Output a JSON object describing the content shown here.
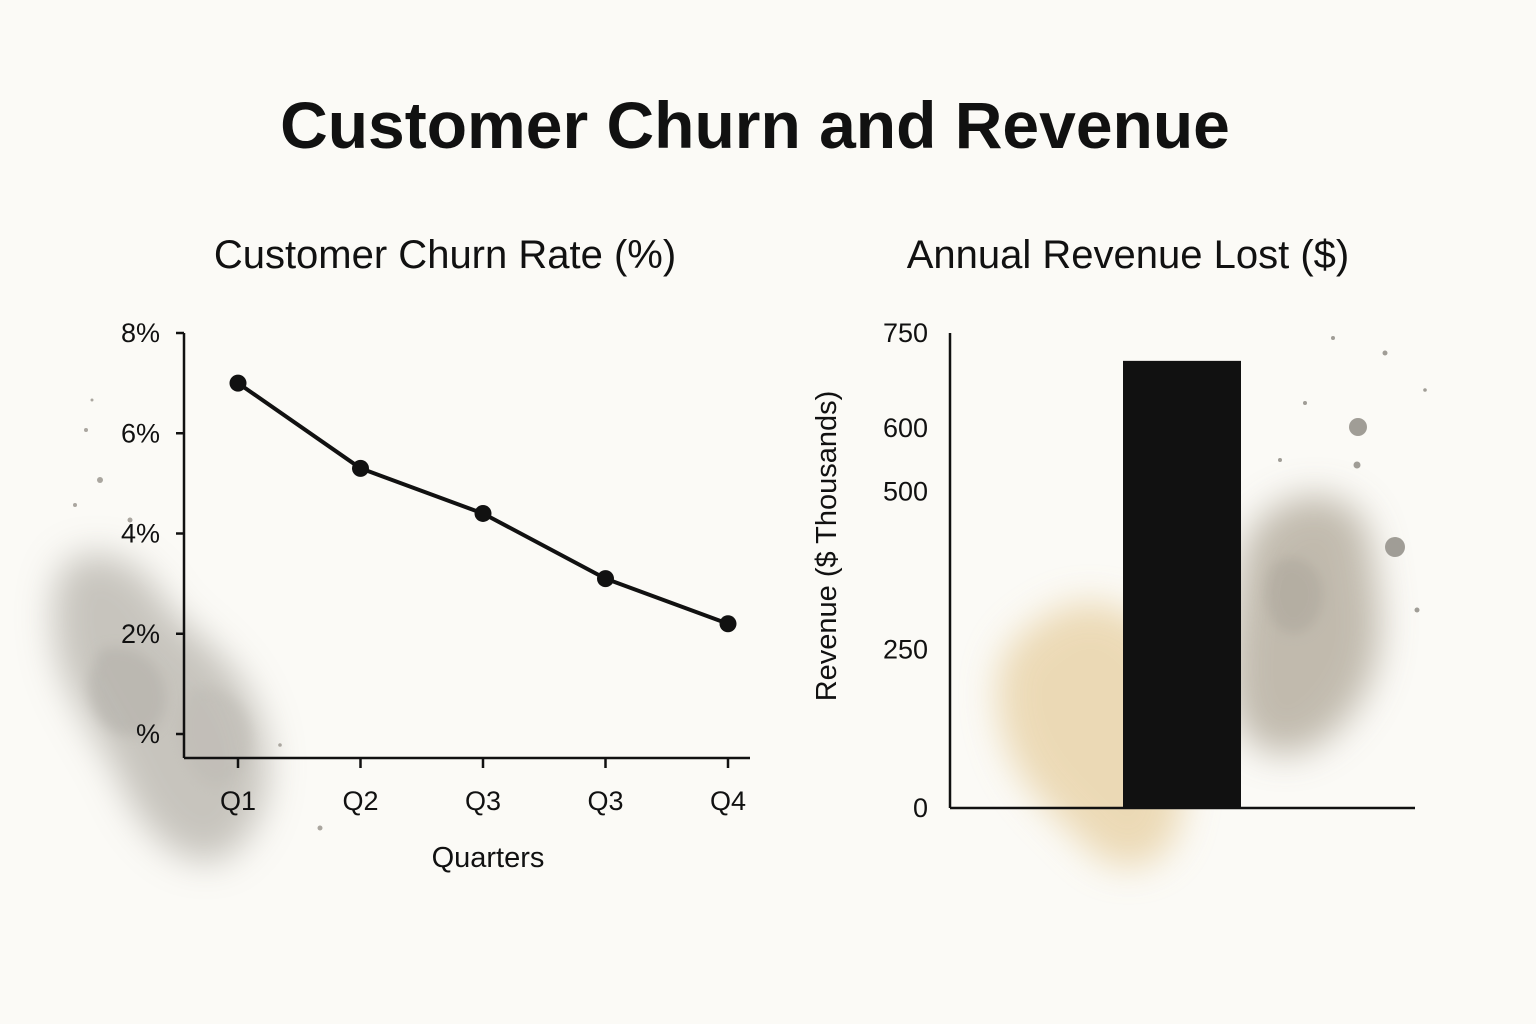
{
  "title": "Customer Churn and Revenue",
  "palette": {
    "ink": "#111111",
    "paper": "#fbfaf6",
    "stain_gray": "#8f8b83",
    "stain_tan": "#e3c99a"
  },
  "chart_data": [
    {
      "type": "line",
      "title": "Customer Churn Rate (%)",
      "xlabel": "Quarters",
      "ylabel": "",
      "categories": [
        "Q1",
        "Q2",
        "Q3",
        "Q3",
        "Q4"
      ],
      "series": [
        {
          "values": [
            7.0,
            5.3,
            4.4,
            3.1,
            2.2
          ]
        }
      ],
      "ylim": [
        0,
        8
      ],
      "yticks": [
        {
          "value": 0,
          "label": "%"
        },
        {
          "value": 2,
          "label": "2%"
        },
        {
          "value": 4,
          "label": "4%"
        },
        {
          "value": 6,
          "label": "6%"
        },
        {
          "value": 8,
          "label": "8%"
        }
      ],
      "grid": false,
      "legend": "none"
    },
    {
      "type": "bar",
      "title": "Annual Revenue Lost ($)",
      "xlabel": "",
      "ylabel": "Revenue ($ Thousands)",
      "categories": [
        ""
      ],
      "values": [
        706
      ],
      "ylim": [
        0,
        750
      ],
      "yticks": [
        {
          "value": 0,
          "label": "0"
        },
        {
          "value": 250,
          "label": "250"
        },
        {
          "value": 500,
          "label": "500"
        },
        {
          "value": 600,
          "label": "600"
        },
        {
          "value": 750,
          "label": "750"
        }
      ],
      "grid": false,
      "legend": "none"
    }
  ]
}
